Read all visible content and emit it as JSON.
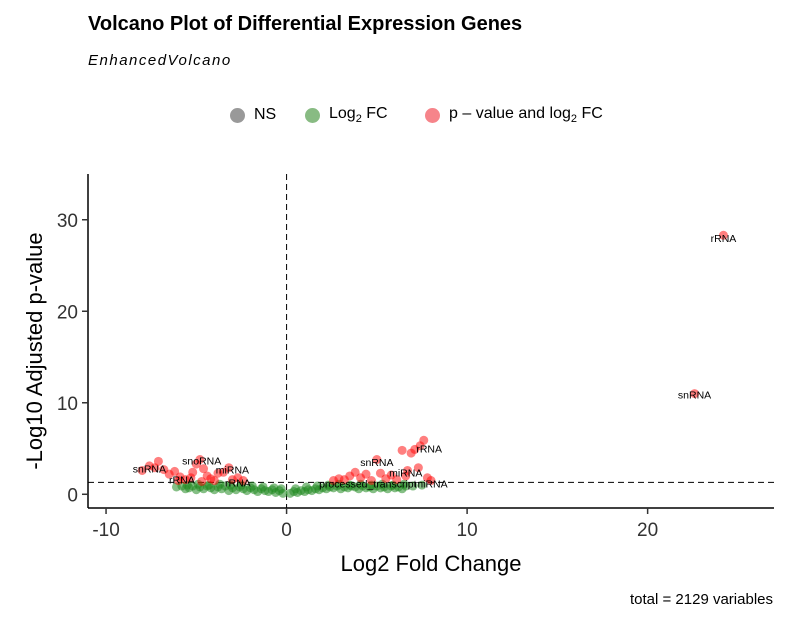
{
  "title": "Volcano Plot of Differential Expression Genes",
  "subtitle": "EnhancedVolcano",
  "caption": "total = 2129 variables",
  "legend": [
    {
      "label": "NS",
      "color": "#808080"
    },
    {
      "label_main": "Log",
      "label_sub": "2",
      "label_tail": " FC",
      "color": "#6aaa64"
    },
    {
      "label_main": "p – value and log",
      "label_sub": "2",
      "label_tail": " FC",
      "color": "#f0323c"
    }
  ],
  "chart_data": {
    "type": "scatter",
    "xlabel": "Log2 Fold Change",
    "ylabel": "-Log10 Adjusted p-value",
    "xlim": [
      -11,
      27
    ],
    "ylim": [
      -1.5,
      35
    ],
    "x_ticks": [
      -10,
      0,
      10,
      20
    ],
    "y_ticks": [
      0,
      10,
      20,
      30
    ],
    "x_tick_labels": [
      "-10",
      "0",
      "10",
      "20"
    ],
    "y_tick_labels": [
      "0",
      "10",
      "20",
      "30"
    ],
    "grid": false,
    "legend_position": "top",
    "cutoffs": {
      "log2fc": 0,
      "neg_log10_p": 1.3
    },
    "colors": {
      "NS": "#808080",
      "FC": "#228b22",
      "P_FC": "#ff0000"
    },
    "series": [
      {
        "name": "Log2 FC",
        "points": [
          [
            -6.1,
            0.8
          ],
          [
            -5.8,
            0.9
          ],
          [
            -5.6,
            0.6
          ],
          [
            -5.4,
            0.7
          ],
          [
            -5.2,
            0.9
          ],
          [
            -5.0,
            0.5
          ],
          [
            -4.8,
            0.8
          ],
          [
            -4.6,
            0.6
          ],
          [
            -4.4,
            0.9
          ],
          [
            -4.2,
            0.7
          ],
          [
            -4.0,
            0.5
          ],
          [
            -3.8,
            0.8
          ],
          [
            -3.6,
            0.6
          ],
          [
            -3.4,
            0.9
          ],
          [
            -3.2,
            0.4
          ],
          [
            -3.0,
            0.7
          ],
          [
            -2.8,
            0.5
          ],
          [
            -2.6,
            0.8
          ],
          [
            -2.4,
            0.6
          ],
          [
            -2.2,
            0.4
          ],
          [
            -2.0,
            0.7
          ],
          [
            -1.8,
            0.5
          ],
          [
            -1.6,
            0.3
          ],
          [
            -1.4,
            0.6
          ],
          [
            -1.2,
            0.4
          ],
          [
            -1.0,
            0.3
          ],
          [
            -0.8,
            0.5
          ],
          [
            -0.6,
            0.2
          ],
          [
            -0.4,
            0.4
          ],
          [
            -0.2,
            0.1
          ],
          [
            -5.5,
            1.0
          ],
          [
            -4.9,
            1.1
          ],
          [
            -4.3,
            1.0
          ],
          [
            -3.7,
            1.1
          ],
          [
            -3.1,
            1.0
          ],
          [
            -2.5,
            1.0
          ],
          [
            -1.9,
            0.9
          ],
          [
            -1.3,
            0.8
          ],
          [
            -0.7,
            0.7
          ],
          [
            -0.3,
            0.6
          ],
          [
            0.2,
            0.1
          ],
          [
            0.4,
            0.3
          ],
          [
            0.6,
            0.2
          ],
          [
            0.8,
            0.4
          ],
          [
            1.0,
            0.3
          ],
          [
            1.2,
            0.5
          ],
          [
            1.4,
            0.4
          ],
          [
            1.6,
            0.6
          ],
          [
            1.8,
            0.5
          ],
          [
            2.0,
            0.7
          ],
          [
            2.2,
            0.6
          ],
          [
            2.4,
            0.8
          ],
          [
            2.6,
            0.7
          ],
          [
            2.8,
            0.9
          ],
          [
            3.0,
            0.6
          ],
          [
            3.2,
            0.8
          ],
          [
            3.4,
            0.7
          ],
          [
            3.6,
            0.9
          ],
          [
            3.8,
            0.8
          ],
          [
            4.0,
            0.6
          ],
          [
            4.2,
            0.9
          ],
          [
            4.4,
            0.7
          ],
          [
            4.6,
            0.8
          ],
          [
            4.8,
            0.6
          ],
          [
            5.0,
            0.9
          ],
          [
            5.2,
            0.7
          ],
          [
            5.4,
            0.8
          ],
          [
            5.6,
            0.6
          ],
          [
            5.8,
            0.9
          ],
          [
            6.0,
            0.7
          ],
          [
            6.2,
            0.8
          ],
          [
            6.4,
            0.6
          ],
          [
            6.6,
            0.9
          ],
          [
            0.5,
            0.6
          ],
          [
            1.1,
            0.8
          ],
          [
            1.7,
            0.9
          ],
          [
            2.3,
            1.0
          ],
          [
            2.9,
            1.1
          ],
          [
            3.5,
            1.0
          ],
          [
            4.1,
            1.1
          ],
          [
            4.7,
            1.0
          ],
          [
            5.3,
            1.1
          ],
          [
            5.9,
            1.0
          ],
          [
            6.5,
            1.1
          ],
          [
            7.0,
            0.9
          ],
          [
            7.5,
            1.0
          ]
        ]
      },
      {
        "name": "p – value and log2 FC",
        "points": [
          [
            -8.0,
            2.6
          ],
          [
            -7.6,
            3.1
          ],
          [
            -7.3,
            2.9
          ],
          [
            -7.1,
            3.6
          ],
          [
            -6.8,
            2.7
          ],
          [
            -6.5,
            2.2
          ],
          [
            -6.2,
            2.5
          ],
          [
            -5.9,
            1.9
          ],
          [
            -5.6,
            1.6
          ],
          [
            -5.3,
            1.8
          ],
          [
            -5.0,
            3.3
          ],
          [
            -4.8,
            3.8
          ],
          [
            -4.6,
            2.8
          ],
          [
            -4.4,
            2.0
          ],
          [
            -4.2,
            1.7
          ],
          [
            -4.0,
            1.5
          ],
          [
            -3.8,
            2.3
          ],
          [
            -3.5,
            2.4
          ],
          [
            -3.2,
            2.9
          ],
          [
            -3.0,
            1.6
          ],
          [
            -2.7,
            1.8
          ],
          [
            -2.4,
            1.5
          ],
          [
            -5.2,
            2.4
          ],
          [
            -6.0,
            1.5
          ],
          [
            -4.7,
            1.4
          ],
          [
            2.6,
            1.5
          ],
          [
            2.9,
            1.7
          ],
          [
            3.2,
            1.6
          ],
          [
            3.5,
            2.0
          ],
          [
            3.8,
            2.4
          ],
          [
            4.1,
            1.8
          ],
          [
            4.4,
            2.2
          ],
          [
            4.7,
            1.5
          ],
          [
            5.0,
            3.8
          ],
          [
            5.2,
            2.3
          ],
          [
            5.5,
            1.7
          ],
          [
            5.8,
            2.1
          ],
          [
            6.1,
            1.6
          ],
          [
            6.4,
            4.8
          ],
          [
            6.7,
            2.6
          ],
          [
            6.9,
            4.5
          ],
          [
            7.1,
            4.9
          ],
          [
            7.4,
            5.3
          ],
          [
            7.6,
            5.9
          ],
          [
            7.8,
            1.8
          ],
          [
            8.0,
            1.5
          ],
          [
            7.3,
            2.9
          ],
          [
            6.6,
            2.0
          ],
          [
            22.6,
            11.0
          ],
          [
            24.2,
            28.3
          ]
        ]
      }
    ],
    "point_labels": [
      {
        "text": "snRNA",
        "x": -7.6,
        "y": 2.8
      },
      {
        "text": "rRNA",
        "x": -5.8,
        "y": 1.6
      },
      {
        "text": "snoRNA",
        "x": -4.7,
        "y": 3.7
      },
      {
        "text": "miRNA",
        "x": -3.0,
        "y": 2.7
      },
      {
        "text": "rRNA",
        "x": -2.7,
        "y": 1.3
      },
      {
        "text": "snRNA",
        "x": 5.0,
        "y": 3.5
      },
      {
        "text": "rRNA",
        "x": 7.9,
        "y": 5.0
      },
      {
        "text": "miRNA",
        "x": 6.6,
        "y": 2.4
      },
      {
        "text": "miRNA",
        "x": 8.0,
        "y": 1.2
      },
      {
        "text": "processed_transcript",
        "x": 4.5,
        "y": 1.2
      },
      {
        "text": "snRNA",
        "x": 22.6,
        "y": 10.9
      },
      {
        "text": "rRNA",
        "x": 24.2,
        "y": 28.0
      }
    ]
  }
}
